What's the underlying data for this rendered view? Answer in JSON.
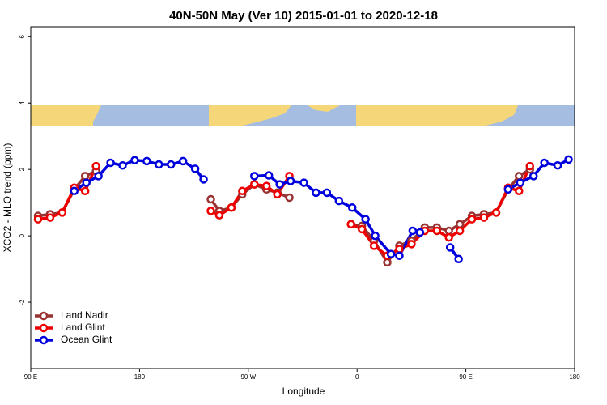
{
  "chart_data": {
    "type": "line",
    "title": "40N-50N May (Ver 10)   2015-01-01 to 2020-12-18",
    "x_label": "Longitude",
    "y_label": "XCO2 - MLO trend (ppm)",
    "xlim": [
      90,
      540
    ],
    "ylim": [
      -4,
      6.3
    ],
    "xticks": [
      {
        "value": 90,
        "label": "90 E"
      },
      180,
      {
        "value": 270,
        "label": "90 W"
      },
      {
        "value": 360,
        "label": "0"
      },
      {
        "value": 450,
        "label": "90 E"
      },
      {
        "value": 540,
        "label": "180"
      }
    ],
    "yticks": [
      -2,
      0,
      2,
      4,
      6
    ],
    "legend": "bottom-left",
    "series": [
      {
        "name": "Land Nadir",
        "color": "#993333",
        "x": [
          96,
          106,
          116,
          126,
          135,
          144,
          null,
          239,
          246,
          256,
          265,
          275,
          285,
          294,
          304,
          null,
          355,
          364,
          374,
          385,
          395,
          405,
          416,
          426,
          436,
          445,
          455,
          465,
          475,
          485,
          494,
          503
        ],
        "values": [
          0.6,
          0.65,
          0.7,
          1.4,
          1.8,
          1.95,
          null,
          1.1,
          0.75,
          0.85,
          1.25,
          1.55,
          1.4,
          1.3,
          1.15,
          null,
          0.35,
          0.3,
          -0.15,
          -0.8,
          -0.3,
          -0.15,
          0.25,
          0.25,
          0.15,
          0.35,
          0.6,
          0.65,
          0.7,
          1.4,
          1.8,
          2.0
        ]
      },
      {
        "name": "Land Glint",
        "color": "#ee0000",
        "x": [
          96,
          106,
          116,
          126,
          135,
          144,
          null,
          239,
          246,
          256,
          265,
          275,
          285,
          294,
          304,
          null,
          355,
          364,
          374,
          385,
          395,
          405,
          416,
          426,
          436,
          445,
          455,
          465,
          475,
          485,
          494,
          503
        ],
        "values": [
          0.5,
          0.55,
          0.7,
          1.45,
          1.35,
          2.1,
          null,
          0.75,
          0.62,
          0.85,
          1.35,
          1.55,
          1.5,
          1.25,
          1.8,
          null,
          0.35,
          0.2,
          -0.3,
          -0.6,
          -0.4,
          -0.25,
          0.15,
          0.15,
          -0.05,
          0.15,
          0.5,
          0.55,
          0.7,
          1.45,
          1.35,
          2.1
        ]
      },
      {
        "name": "Ocean Glint",
        "color": "#0000dd",
        "x": [
          126,
          136,
          146,
          156,
          166,
          176,
          186,
          196,
          206,
          216,
          226,
          233,
          null,
          275,
          287,
          296,
          305,
          316,
          326,
          335,
          345,
          356,
          367,
          375,
          388,
          395,
          406,
          412,
          null,
          437,
          444,
          null,
          485,
          495,
          506,
          515,
          526,
          535
        ],
        "values": [
          1.35,
          1.6,
          1.8,
          2.2,
          2.12,
          2.28,
          2.25,
          2.15,
          2.15,
          2.25,
          2.02,
          1.7,
          null,
          1.8,
          1.82,
          1.55,
          1.65,
          1.6,
          1.3,
          1.3,
          1.05,
          0.85,
          0.5,
          0.0,
          -0.55,
          -0.6,
          0.15,
          0.1,
          null,
          -0.35,
          -0.7,
          null,
          1.4,
          1.6,
          1.8,
          2.2,
          2.12,
          2.3
        ]
      }
    ]
  }
}
